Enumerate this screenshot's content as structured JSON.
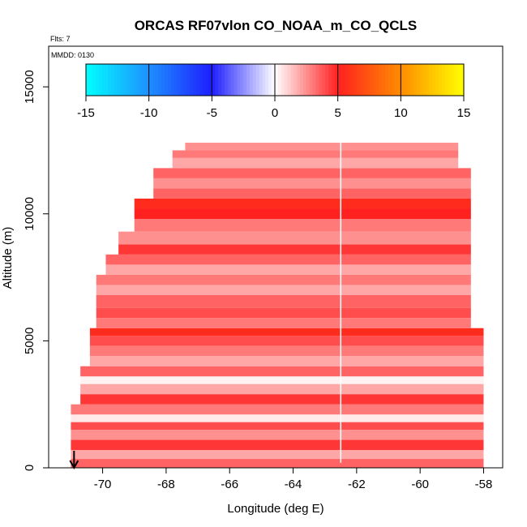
{
  "chart_data": {
    "type": "heatmap",
    "title": "ORCAS RF07vlon CO_NOAA_m_CO_QCLS",
    "flts_label": "Flts: 7",
    "date_label": "MMDD: 0130",
    "xlabel": "Longitude (deg E)",
    "ylabel": "Altitude (m)",
    "xlim": [
      -71.7,
      -57.4
    ],
    "ylim": [
      0,
      16600
    ],
    "x_ticks": [
      -70,
      -68,
      -66,
      -64,
      -62,
      -60,
      -58
    ],
    "y_ticks": [
      0,
      5000,
      10000,
      15000
    ],
    "colorbar": {
      "min": -15,
      "max": 15,
      "ticks": [
        -15,
        -10,
        -5,
        0,
        5,
        10,
        15
      ],
      "stops": [
        {
          "v": -15,
          "color": "#00FFFF"
        },
        {
          "v": -10,
          "color": "#1E90FF"
        },
        {
          "v": -5,
          "color": "#1E1EFF"
        },
        {
          "v": 0,
          "color": "#FFFFFF"
        },
        {
          "v": 5,
          "color": "#FF2020"
        },
        {
          "v": 10,
          "color": "#FF8C00"
        },
        {
          "v": 15,
          "color": "#FFFF00"
        }
      ]
    },
    "vertical_line_lon": -62.5,
    "arrow_lon": -70.9,
    "profile_edges": [
      {
        "alt": 0,
        "west": -71.0,
        "east": -58.0
      },
      {
        "alt": 2300,
        "west": -71.0,
        "east": -58.0
      },
      {
        "alt": 2400,
        "west": -70.7,
        "east": -58.0
      },
      {
        "alt": 3800,
        "west": -70.4,
        "east": -58.0
      },
      {
        "alt": 5500,
        "west": -70.2,
        "east": -58.4
      },
      {
        "alt": 7500,
        "west": -69.9,
        "east": -58.4
      },
      {
        "alt": 8400,
        "west": -69.5,
        "east": -58.4
      },
      {
        "alt": 9300,
        "west": -69.0,
        "east": -58.4
      },
      {
        "alt": 10600,
        "west": -68.4,
        "east": -58.4
      },
      {
        "alt": 11500,
        "west": -67.8,
        "east": -58.8
      },
      {
        "alt": 12300,
        "west": -67.4,
        "east": -58.8
      },
      {
        "alt": 12800,
        "west": -67.2,
        "east": -58.8
      }
    ],
    "layers": [
      {
        "alt": 0,
        "value": 3.5
      },
      {
        "alt": 350,
        "value": 2.0
      },
      {
        "alt": 700,
        "value": 4.5
      },
      {
        "alt": 1100,
        "value": 2.5
      },
      {
        "alt": 1500,
        "value": 4.0
      },
      {
        "alt": 1800,
        "value": 0.5
      },
      {
        "alt": 2100,
        "value": 3.0
      },
      {
        "alt": 2500,
        "value": 4.5
      },
      {
        "alt": 2900,
        "value": 2.0
      },
      {
        "alt": 3300,
        "value": 0.3
      },
      {
        "alt": 3600,
        "value": 3.5
      },
      {
        "alt": 4000,
        "value": 2.0
      },
      {
        "alt": 4400,
        "value": 3.0
      },
      {
        "alt": 4800,
        "value": 4.0
      },
      {
        "alt": 5200,
        "value": 5.5
      },
      {
        "alt": 5500,
        "value": 3.0
      },
      {
        "alt": 5900,
        "value": 4.0
      },
      {
        "alt": 6300,
        "value": 3.5
      },
      {
        "alt": 6800,
        "value": 2.0
      },
      {
        "alt": 7200,
        "value": 3.0
      },
      {
        "alt": 7600,
        "value": 2.0
      },
      {
        "alt": 8000,
        "value": 3.5
      },
      {
        "alt": 8400,
        "value": 4.5
      },
      {
        "alt": 8800,
        "value": 2.5
      },
      {
        "alt": 9300,
        "value": 3.0
      },
      {
        "alt": 9800,
        "value": 5.0
      },
      {
        "alt": 10200,
        "value": 5.5
      },
      {
        "alt": 10600,
        "value": 3.5
      },
      {
        "alt": 11000,
        "value": 2.5
      },
      {
        "alt": 11400,
        "value": 3.5
      },
      {
        "alt": 11800,
        "value": 2.0
      },
      {
        "alt": 12200,
        "value": 3.0
      },
      {
        "alt": 12500,
        "value": 2.5
      }
    ]
  }
}
